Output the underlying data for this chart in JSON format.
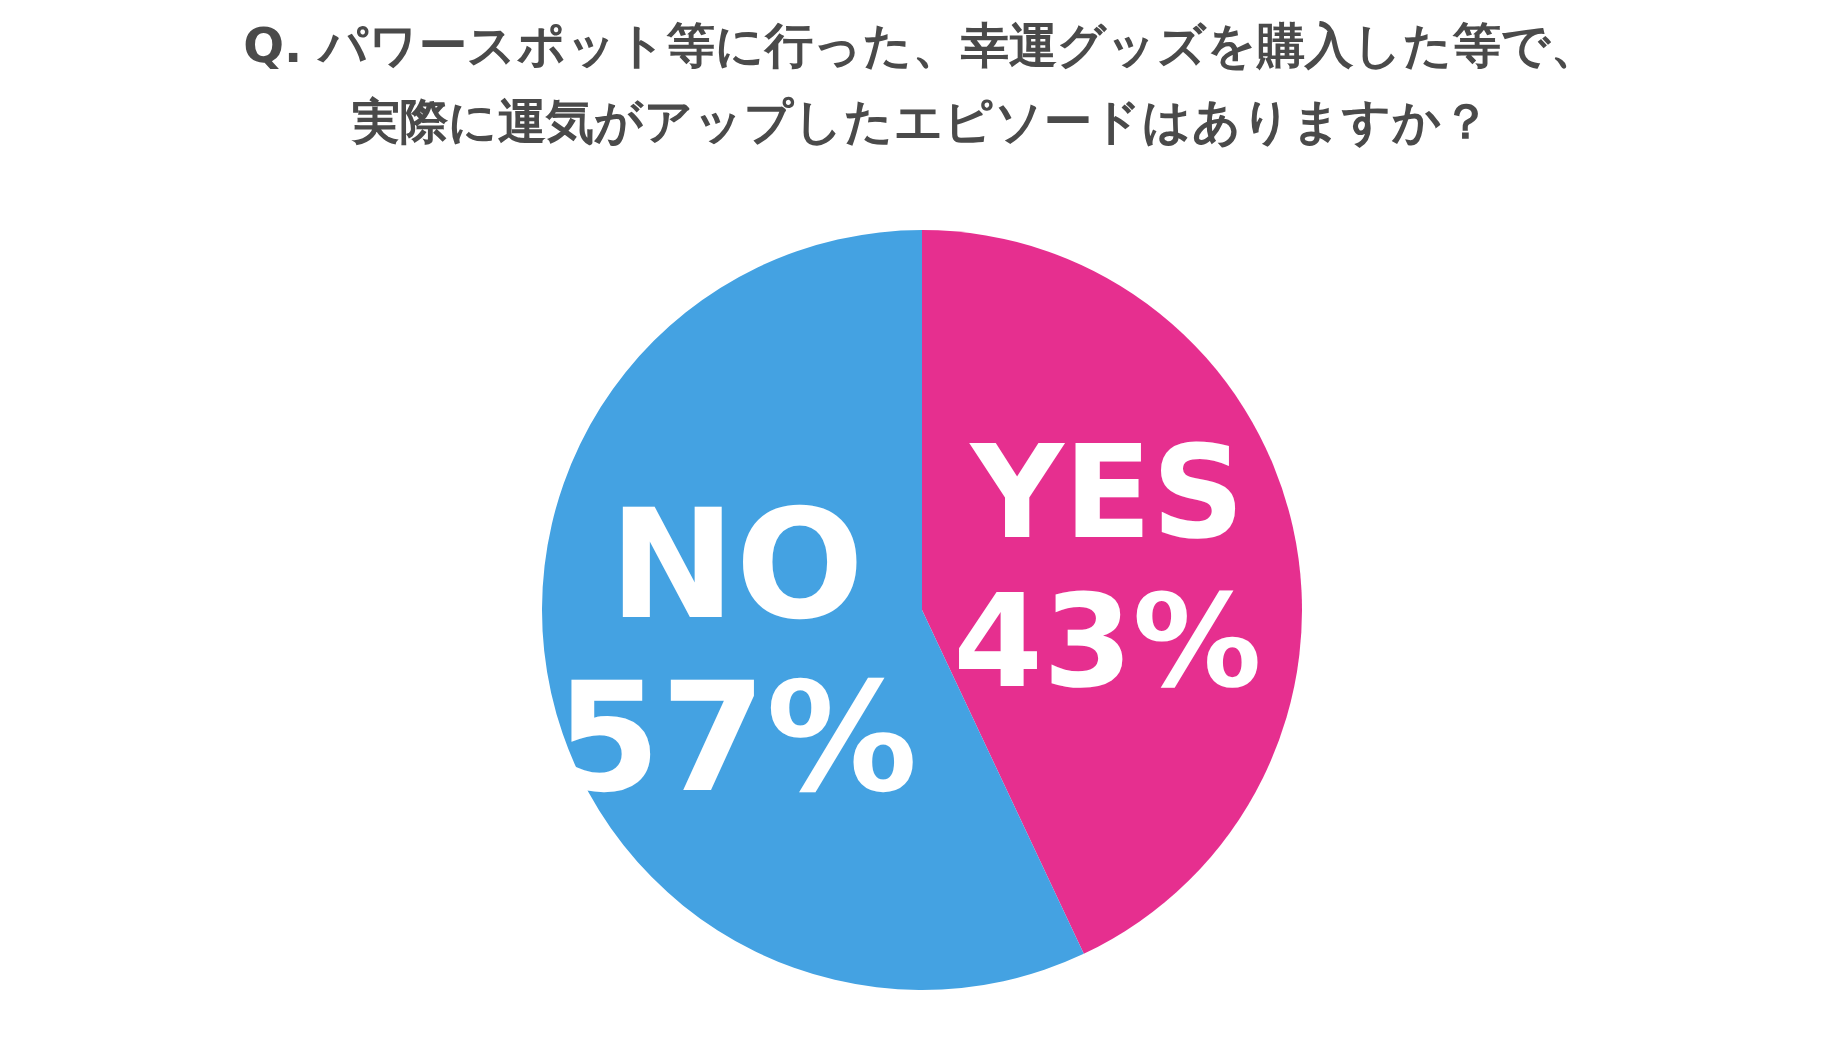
{
  "chart_data": {
    "type": "pie",
    "title": "Q. パワースポット等に行った、幸運グッズを購入した等で、実際に運気がアップしたエピソードはありますか？",
    "categories": [
      "YES",
      "NO"
    ],
    "values": [
      43,
      57
    ],
    "colors": [
      "#e62f8f",
      "#44a2e2"
    ],
    "value_labels": [
      "43%",
      "57%"
    ]
  }
}
